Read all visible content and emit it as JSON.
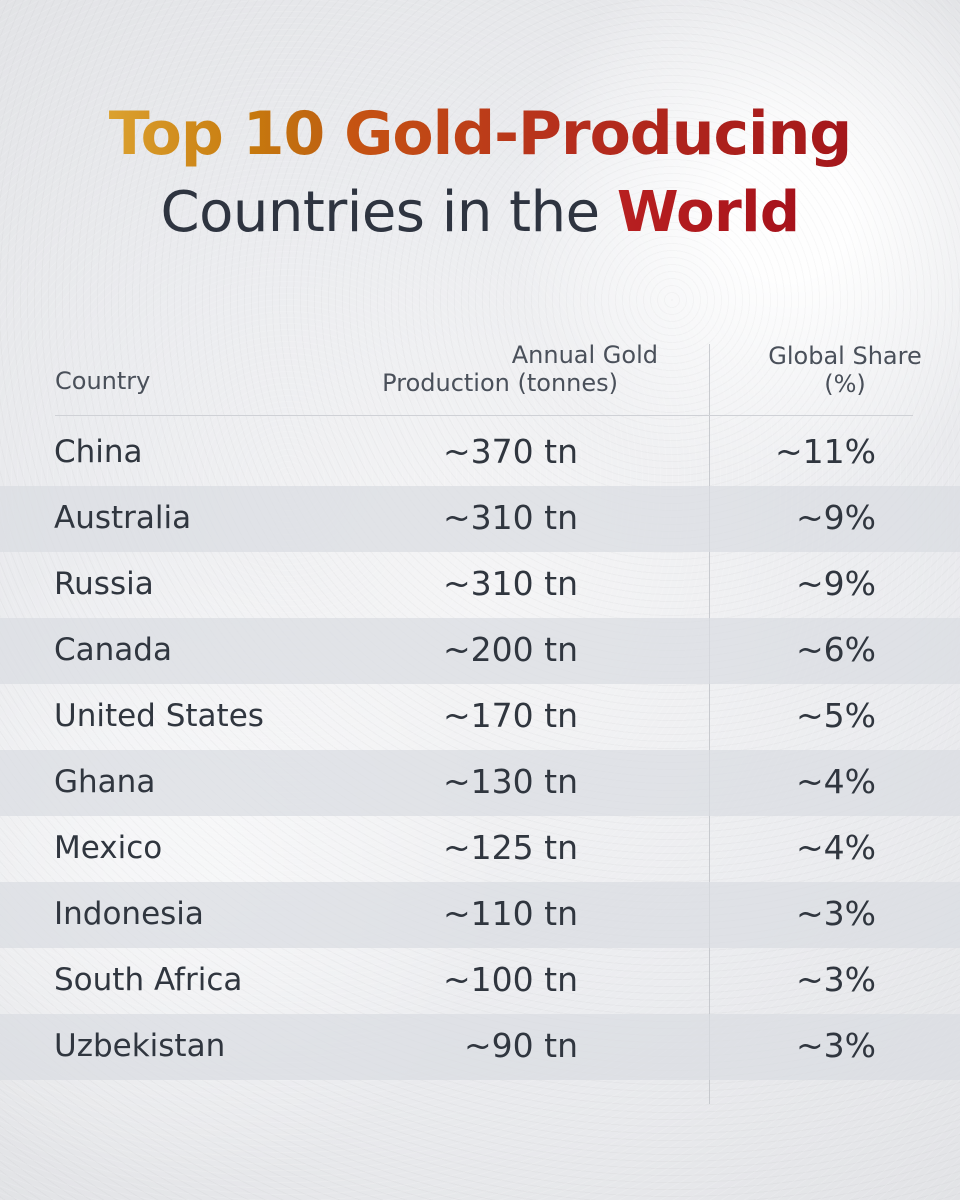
{
  "title": {
    "line1_part1": "Top 10",
    "line1_part2": "Gold-Producing",
    "line2_part1": "Countries in the",
    "line2_part2": "World"
  },
  "table": {
    "headers": {
      "country": "Country",
      "production_line1": "Annual Gold",
      "production_line2": "Production (tonnes)",
      "share_line1": "Global Share",
      "share_line2": "(%)"
    },
    "rows": [
      {
        "country": "China",
        "production": "~370 tn",
        "share": "~11%"
      },
      {
        "country": "Australia",
        "production": "~310 tn",
        "share": "~9%"
      },
      {
        "country": "Russia",
        "production": "~310 tn",
        "share": "~9%"
      },
      {
        "country": "Canada",
        "production": "~200 tn",
        "share": "~6%"
      },
      {
        "country": "United States",
        "production": "~170 tn",
        "share": "~5%"
      },
      {
        "country": "Ghana",
        "production": "~130 tn",
        "share": "~4%"
      },
      {
        "country": "Mexico",
        "production": "~125 tn",
        "share": "~4%"
      },
      {
        "country": "Indonesia",
        "production": "~110 tn",
        "share": "~3%"
      },
      {
        "country": "South Africa",
        "production": "~100 tn",
        "share": "~3%"
      },
      {
        "country": "Uzbekistan",
        "production": "~90 tn",
        "share": "~3%"
      }
    ]
  },
  "chart_data": {
    "type": "table",
    "title": "Top 10 Gold-Producing Countries in the World",
    "columns": [
      "Country",
      "Annual Gold Production (tonnes)",
      "Global Share (%)"
    ],
    "rows": [
      [
        "China",
        "~370 tn",
        "~11%"
      ],
      [
        "Australia",
        "~310 tn",
        "~9%"
      ],
      [
        "Russia",
        "~310 tn",
        "~9%"
      ],
      [
        "Canada",
        "~200 tn",
        "~6%"
      ],
      [
        "United States",
        "~170 tn",
        "~5%"
      ],
      [
        "Ghana",
        "~130 tn",
        "~4%"
      ],
      [
        "Mexico",
        "~125 tn",
        "~4%"
      ],
      [
        "Indonesia",
        "~110 tn",
        "~3%"
      ],
      [
        "South Africa",
        "~100 tn",
        "~3%"
      ],
      [
        "Uzbekistan",
        "~90 tn",
        "~3%"
      ]
    ]
  }
}
